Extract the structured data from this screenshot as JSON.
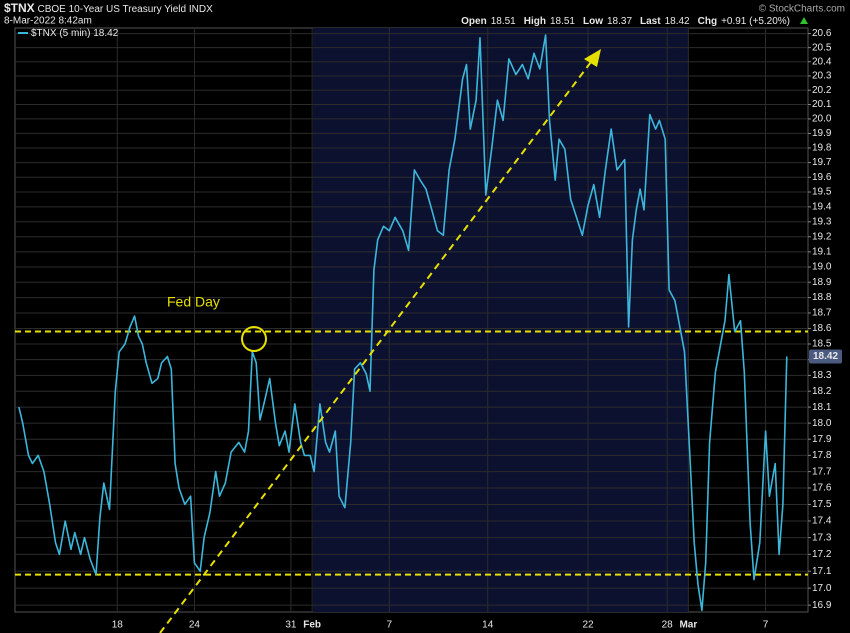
{
  "chart_data": {
    "type": "line",
    "symbol": "$TNX",
    "title": "CBOE 10-Year US Treasury Yield",
    "exchange": "INDX",
    "date": "8-Mar-2022 8:42am",
    "copyright": "© StockCharts.com",
    "quote": [
      {
        "label": "Open",
        "value": 18.51
      },
      {
        "label": "High",
        "value": 18.51
      },
      {
        "label": "Low",
        "value": 18.37
      },
      {
        "label": "Last",
        "value": 18.42
      },
      {
        "label": "Chg",
        "value": "+0.91 (+5.20%)"
      }
    ],
    "annotation": "Fed Day",
    "hlines": [
      18.58,
      17.08
    ],
    "hline_color": "#e6e000",
    "log": true,
    "grid": true,
    "xlim": [
      0,
      41.1
    ],
    "xticks": [
      {
        "value": 5.3,
        "label": "18"
      },
      {
        "value": 9.3,
        "label": "24"
      },
      {
        "value": 14.3,
        "label": "31"
      },
      {
        "value": 15.4,
        "label": "Feb"
      },
      {
        "value": 19.4,
        "label": "7"
      },
      {
        "value": 24.5,
        "label": "14"
      },
      {
        "value": 29.7,
        "label": "22"
      },
      {
        "value": 33.8,
        "label": "28"
      },
      {
        "value": 34.9,
        "label": "Mar"
      },
      {
        "value": 38.9,
        "label": "7"
      }
    ],
    "ylim": [
      16.86,
      20.64
    ],
    "yticks": [
      16.9,
      {
        "value": 17,
        "label": "17.0"
      },
      17.1,
      17.2,
      17.3,
      17.4,
      17.5,
      17.6,
      17.7,
      17.8,
      17.9,
      {
        "value": 18,
        "label": "18.0"
      },
      18.1,
      18.2,
      18.3,
      18.4,
      18.5,
      18.6,
      18.7,
      18.8,
      18.9,
      {
        "value": 19,
        "label": "19.0"
      },
      19.1,
      19.2,
      19.3,
      19.4,
      19.5,
      19.6,
      19.7,
      19.8,
      19.9,
      {
        "value": 20,
        "label": "20.0"
      },
      20.1,
      20.2,
      20.3,
      20.4,
      20.5,
      20.6
    ],
    "x": [
      0.2,
      0.4,
      0.7,
      0.9,
      1.2,
      1.5,
      1.8,
      2.1,
      2.3,
      2.6,
      2.9,
      3.1,
      3.4,
      3.6,
      3.9,
      4.2,
      4.4,
      4.6,
      4.9,
      5.2,
      5.4,
      5.7,
      5.96,
      6.2,
      6.4,
      6.6,
      6.8,
      7.1,
      7.4,
      7.6,
      7.9,
      8.1,
      8.3,
      8.5,
      8.8,
      9.1,
      9.3,
      9.6,
      9.8,
      10.1,
      10.4,
      10.6,
      10.9,
      11.2,
      11.6,
      11.9,
      12.1,
      12.3,
      12.5,
      12.7,
      12.9,
      13.2,
      13.5,
      13.7,
      14.0,
      14.2,
      14.5,
      14.8,
      15.0,
      15.3,
      15.5,
      15.8,
      16.1,
      16.3,
      16.6,
      16.8,
      17.1,
      17.4,
      17.6,
      17.9,
      18.2,
      18.4,
      18.6,
      18.8,
      19.1,
      19.4,
      19.7,
      20.1,
      20.4,
      20.7,
      21.0,
      21.3,
      21.6,
      21.9,
      22.2,
      22.5,
      22.8,
      23.2,
      23.4,
      23.6,
      23.9,
      24.1,
      24.4,
      24.7,
      25.0,
      25.3,
      25.6,
      25.96,
      26.3,
      26.6,
      26.9,
      27.2,
      27.5,
      27.7,
      28.0,
      28.2,
      28.5,
      28.8,
      29.1,
      29.4,
      29.7,
      30.0,
      30.3,
      30.6,
      30.9,
      31.2,
      31.6,
      31.8,
      32.0,
      32.2,
      32.4,
      32.6,
      32.9,
      33.2,
      33.4,
      33.7,
      33.9,
      34.2,
      34.4,
      34.7,
      34.97,
      35.2,
      35.4,
      35.6,
      35.8,
      36.0,
      36.3,
      36.5,
      36.8,
      37.0,
      37.3,
      37.6,
      37.8,
      38.1,
      38.3,
      38.6,
      38.9,
      39.1,
      39.4,
      39.6,
      39.8,
      40.0
    ],
    "series": [
      {
        "name": "$TNX (5 min)",
        "color": "#3cb6da",
        "values": [
          18.1,
          18.0,
          17.8,
          17.75,
          17.8,
          17.7,
          17.5,
          17.27,
          17.2,
          17.4,
          17.23,
          17.33,
          17.2,
          17.3,
          17.17,
          17.08,
          17.42,
          17.63,
          17.47,
          18.2,
          18.45,
          18.5,
          18.61,
          18.68,
          18.55,
          18.5,
          18.38,
          18.25,
          18.28,
          18.38,
          18.42,
          18.34,
          17.75,
          17.6,
          17.5,
          17.55,
          17.15,
          17.1,
          17.3,
          17.45,
          17.7,
          17.55,
          17.63,
          17.82,
          17.88,
          17.82,
          17.95,
          18.45,
          18.38,
          18.02,
          18.12,
          18.28,
          18.0,
          17.86,
          17.95,
          17.82,
          18.12,
          17.88,
          17.8,
          17.8,
          17.7,
          18.12,
          17.88,
          17.82,
          17.95,
          17.55,
          17.48,
          17.88,
          18.34,
          18.38,
          18.31,
          18.2,
          18.98,
          19.18,
          19.27,
          19.24,
          19.33,
          19.24,
          19.11,
          19.65,
          19.58,
          19.52,
          19.38,
          19.24,
          19.21,
          19.65,
          19.86,
          20.28,
          20.38,
          19.93,
          20.13,
          20.57,
          19.48,
          19.79,
          20.13,
          19.99,
          20.42,
          20.31,
          20.38,
          20.28,
          20.46,
          20.35,
          20.59,
          19.99,
          19.58,
          19.86,
          19.79,
          19.45,
          19.33,
          19.21,
          19.41,
          19.55,
          19.33,
          19.65,
          19.93,
          19.65,
          19.72,
          18.61,
          19.18,
          19.38,
          19.52,
          19.38,
          20.03,
          19.93,
          19.99,
          19.86,
          18.85,
          18.78,
          18.65,
          18.45,
          17.82,
          17.27,
          17.02,
          16.87,
          17.15,
          17.88,
          18.32,
          18.45,
          18.65,
          18.95,
          18.58,
          18.65,
          18.32,
          17.39,
          17.05,
          17.27,
          17.95,
          17.55,
          17.75,
          17.2,
          17.5,
          18.42
        ]
      }
    ]
  }
}
